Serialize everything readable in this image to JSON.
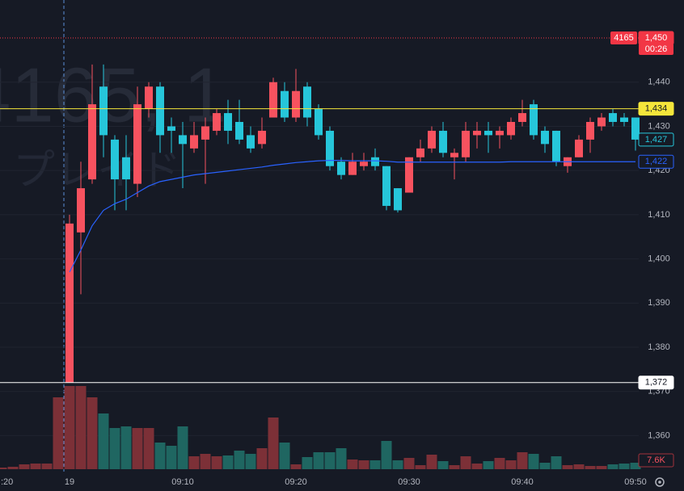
{
  "chart_data": {
    "type": "candlestick",
    "watermark": {
      "symbol": "4165, 1",
      "name": "プレイド"
    },
    "prior_time_label": ":20",
    "categories": [
      "19",
      null,
      null,
      null,
      null,
      null,
      null,
      null,
      null,
      null,
      "09:10",
      null,
      null,
      null,
      null,
      null,
      null,
      null,
      null,
      null,
      "09:20",
      null,
      null,
      null,
      null,
      null,
      null,
      null,
      null,
      null,
      "09:30",
      null,
      null,
      null,
      null,
      null,
      null,
      null,
      null,
      null,
      "09:40",
      null,
      null,
      null,
      null,
      null,
      null,
      null,
      null,
      null,
      "09:50"
    ],
    "open": [
      1372,
      1406,
      1418,
      1439,
      1427,
      1423,
      1417,
      1434,
      1439,
      1430,
      1428,
      1425,
      1427,
      1429,
      1433,
      1431,
      1428,
      1426,
      1432,
      1438,
      1432,
      1439,
      1434,
      1429,
      1422,
      1419,
      1421,
      1423,
      1421,
      1416,
      1415,
      1423,
      1425,
      1429,
      1423,
      1423,
      1428,
      1429,
      1428,
      1428,
      1431,
      1435,
      1429,
      1429,
      1421,
      1423,
      1427,
      1430,
      1433,
      1432,
      1432
    ],
    "high": [
      1410,
      1422,
      1444,
      1444,
      1428,
      1428,
      1439,
      1440,
      1440,
      1432,
      1431,
      1431,
      1432,
      1434,
      1436,
      1436,
      1430,
      1432,
      1441,
      1440,
      1443,
      1440,
      1435,
      1430,
      1423,
      1424,
      1424,
      1425,
      1421,
      1416,
      1423,
      1427,
      1430,
      1431,
      1425,
      1431,
      1431,
      1431,
      1430,
      1432,
      1436,
      1436,
      1430,
      1429,
      1423,
      1428,
      1432,
      1433,
      1434,
      1433,
      1432
    ],
    "low": [
      1372,
      1392,
      1417,
      1423,
      1411,
      1411,
      1414,
      1432,
      1424,
      1424,
      1416,
      1424,
      1417,
      1428,
      1426,
      1426,
      1424,
      1425,
      1432,
      1431,
      1431,
      1430,
      1427,
      1420,
      1418,
      1419,
      1420,
      1420,
      1411,
      1410.5,
      1415,
      1422,
      1424,
      1423,
      1418,
      1422,
      1425,
      1424,
      1425,
      1427,
      1430,
      1427,
      1424,
      1421,
      1419.5,
      1423,
      1424,
      1429,
      1430,
      1430,
      1424.5
    ],
    "close": [
      1408,
      1416,
      1435,
      1428,
      1418,
      1418,
      1435,
      1439,
      1428,
      1429,
      1426,
      1428,
      1430,
      1433,
      1429,
      1427,
      1425,
      1429,
      1440,
      1432,
      1438,
      1432,
      1428,
      1421,
      1419,
      1422,
      1422,
      1421,
      1412,
      1411,
      1423,
      1425,
      1429,
      1424,
      1424,
      1429,
      1429,
      1428,
      1429,
      1431,
      1433,
      1428,
      1426,
      1422,
      1423,
      1427,
      1431,
      1432,
      1431,
      1431,
      1427
    ],
    "volume": [
      97850,
      97850,
      84550,
      65550,
      48450,
      50350,
      48450,
      48450,
      31350,
      27550,
      50350,
      15200,
      18050,
      15200,
      16150,
      21850,
      18050,
      24700,
      60800,
      31350,
      5700,
      14250,
      19950,
      19950,
      24700,
      11400,
      10450,
      10450,
      33250,
      10450,
      13300,
      4750,
      17100,
      9500,
      4750,
      15200,
      6650,
      9500,
      13300,
      10450,
      19950,
      18050,
      7600,
      15200,
      4750,
      5700,
      3800,
      3800,
      5700,
      6650,
      7600
    ],
    "prior_volume": [
      1900,
      2850,
      5700,
      6650,
      6650,
      84550
    ],
    "vwap": [
      1397,
      1402,
      1407.5,
      1411,
      1412.5,
      1413.5,
      1415,
      1416.5,
      1417.5,
      1418,
      1418.5,
      1419,
      1419.3,
      1419.6,
      1419.9,
      1420.2,
      1420.5,
      1420.8,
      1421.2,
      1421.5,
      1421.8,
      1422,
      1422.2,
      1422.3,
      1422.3,
      1422.2,
      1422.2,
      1422.2,
      1422.1,
      1421.9,
      1421.9,
      1421.9,
      1421.9,
      1421.9,
      1421.9,
      1421.9,
      1421.9,
      1421.9,
      1421.9,
      1422,
      1422,
      1422,
      1422,
      1422,
      1422,
      1422,
      1422,
      1422,
      1422,
      1422,
      1422
    ],
    "ylim": [
      1352.4,
      1458.6
    ],
    "yticks": [
      {
        "value": 1360,
        "label": "1,360"
      },
      {
        "value": 1370,
        "label": "1,370"
      },
      {
        "value": 1380,
        "label": "1,380"
      },
      {
        "value": 1390,
        "label": "1,390"
      },
      {
        "value": 1400,
        "label": "1,400"
      },
      {
        "value": 1410,
        "label": "1,410"
      },
      {
        "value": 1420,
        "label": "1,420"
      },
      {
        "value": 1430,
        "label": "1,430"
      },
      {
        "value": 1440,
        "label": "1,440"
      }
    ],
    "volume_ylim": [
      0,
      551950
    ],
    "price_labels": [
      {
        "value": 1450,
        "label": "1,450",
        "symbol": "4165",
        "countdown": "00:26",
        "color": "#f23645",
        "line": "dotted"
      },
      {
        "value": 1434,
        "label": "1,434",
        "color": "#f5e63b",
        "line": "solid"
      },
      {
        "value": 1427,
        "label": "1,427",
        "color": "#26c6da"
      },
      {
        "value": 1422,
        "label": "1,422",
        "color": "#2962ff"
      },
      {
        "value": 1372,
        "label": "1,372",
        "color": "#ffffff",
        "line": "solid"
      }
    ],
    "volume_label": {
      "value": 7600,
      "label": "7.6K"
    },
    "colors": {
      "up": "#f7525f",
      "down": "#26c6da",
      "volume_up": "#7c3037",
      "volume_down": "#1f6661",
      "vwap": "#2962ff"
    },
    "grid": true
  }
}
